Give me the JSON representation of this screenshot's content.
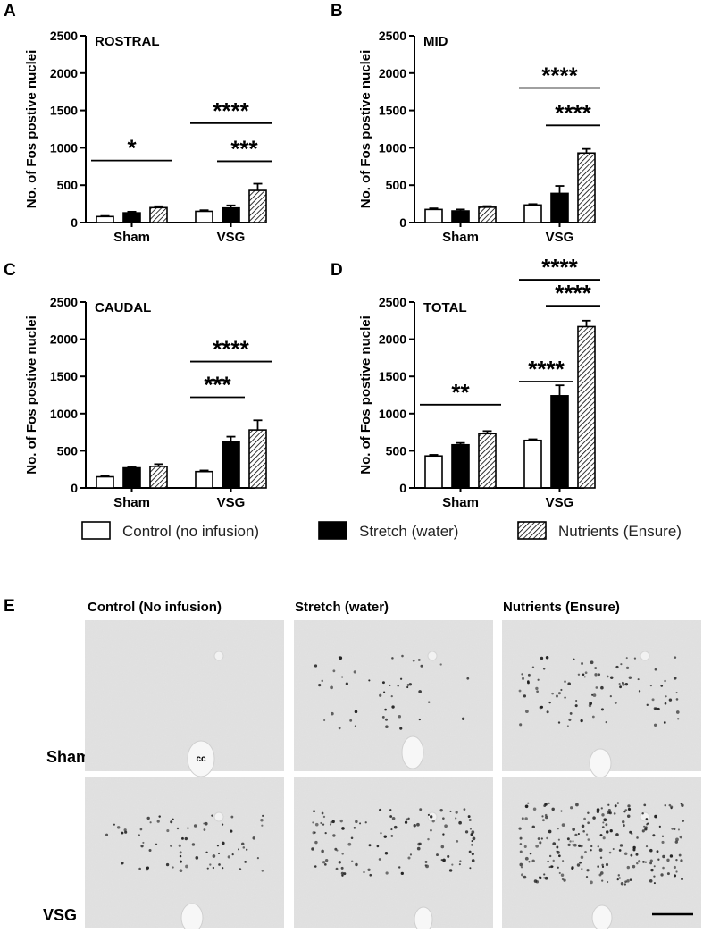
{
  "legend": [
    {
      "label": "Control (no infusion)",
      "style": "open"
    },
    {
      "label": "Stretch (water)",
      "style": "solid"
    },
    {
      "label": "Nutrients (Ensure)",
      "style": "hatched"
    }
  ],
  "chart_data": [
    {
      "type": "bar",
      "panel": "A",
      "title": "ROSTRAL",
      "ylabel": "No. of Fos postive nuclei",
      "ylim": [
        0,
        2500
      ],
      "yticks": [
        "0",
        "500",
        "1000",
        "1500",
        "2000",
        "2500"
      ],
      "categories": [
        "Sham",
        "VSG"
      ],
      "series": [
        {
          "name": "Control (no infusion)",
          "values": [
            80,
            150
          ],
          "err": [
            8,
            15
          ]
        },
        {
          "name": "Stretch (water)",
          "values": [
            130,
            195
          ],
          "err": [
            15,
            35
          ]
        },
        {
          "name": "Nutrients (Ensure)",
          "values": [
            200,
            430
          ],
          "err": [
            18,
            90
          ]
        }
      ],
      "significance": [
        {
          "group": 0,
          "from": 0,
          "to": 2,
          "label": "*",
          "level": 830
        },
        {
          "group": 1,
          "from": 0,
          "to": 2,
          "label": "****",
          "level": 1330
        },
        {
          "group": 1,
          "from": 1,
          "to": 2,
          "label": "***",
          "level": 820
        }
      ]
    },
    {
      "type": "bar",
      "panel": "B",
      "title": "MID",
      "ylabel": "No. of Fos postive nuclei",
      "ylim": [
        0,
        2500
      ],
      "yticks": [
        "0",
        "500",
        "1000",
        "1500",
        "2000",
        "2500"
      ],
      "categories": [
        "Sham",
        "VSG"
      ],
      "series": [
        {
          "name": "Control (no infusion)",
          "values": [
            175,
            235
          ],
          "err": [
            15,
            12
          ]
        },
        {
          "name": "Stretch (water)",
          "values": [
            155,
            390
          ],
          "err": [
            20,
            100
          ]
        },
        {
          "name": "Nutrients (Ensure)",
          "values": [
            205,
            930
          ],
          "err": [
            15,
            55
          ]
        }
      ],
      "significance": [
        {
          "group": 1,
          "from": 0,
          "to": 2,
          "label": "****",
          "level": 1800
        },
        {
          "group": 1,
          "from": 1,
          "to": 2,
          "label": "****",
          "level": 1300
        }
      ]
    },
    {
      "type": "bar",
      "panel": "C",
      "title": "CAUDAL",
      "ylabel": "No. of Fos postive nuclei",
      "ylim": [
        0,
        2500
      ],
      "yticks": [
        "0",
        "500",
        "1000",
        "1500",
        "2000",
        "2500"
      ],
      "categories": [
        "Sham",
        "VSG"
      ],
      "series": [
        {
          "name": "Control (no infusion)",
          "values": [
            150,
            220
          ],
          "err": [
            15,
            15
          ]
        },
        {
          "name": "Stretch (water)",
          "values": [
            270,
            620
          ],
          "err": [
            18,
            70
          ]
        },
        {
          "name": "Nutrients (Ensure)",
          "values": [
            290,
            780
          ],
          "err": [
            30,
            130
          ]
        }
      ],
      "significance": [
        {
          "group": 1,
          "from": 0,
          "to": 1,
          "label": "***",
          "level": 1220
        },
        {
          "group": 1,
          "from": 0,
          "to": 2,
          "label": "****",
          "level": 1700
        }
      ]
    },
    {
      "type": "bar",
      "panel": "D",
      "title": "TOTAL",
      "ylabel": "No. of Fos postive nuclei",
      "ylim": [
        0,
        2500
      ],
      "yticks": [
        "0",
        "500",
        "1000",
        "1500",
        "2000",
        "2500"
      ],
      "categories": [
        "Sham",
        "VSG"
      ],
      "series": [
        {
          "name": "Control (no infusion)",
          "values": [
            430,
            640
          ],
          "err": [
            15,
            15
          ]
        },
        {
          "name": "Stretch (water)",
          "values": [
            580,
            1240
          ],
          "err": [
            25,
            140
          ]
        },
        {
          "name": "Nutrients (Ensure)",
          "values": [
            730,
            2170
          ],
          "err": [
            35,
            80
          ]
        }
      ],
      "significance": [
        {
          "group": 0,
          "from": 0,
          "to": 2,
          "label": "**",
          "level": 1120
        },
        {
          "group": 1,
          "from": 0,
          "to": 1,
          "label": "****",
          "level": 1430
        },
        {
          "group": 1,
          "from": 0,
          "to": 2,
          "label": "****",
          "level": 2800
        },
        {
          "group": 1,
          "from": 1,
          "to": 2,
          "label": "****",
          "level": 2450
        }
      ]
    }
  ],
  "micrographs": {
    "panel": "E",
    "columns": [
      "Control (No infusion)",
      "Stretch (water)",
      "Nutrients (Ensure)"
    ],
    "rows": [
      "Sham",
      "VSG"
    ],
    "cc_label": "cc"
  }
}
